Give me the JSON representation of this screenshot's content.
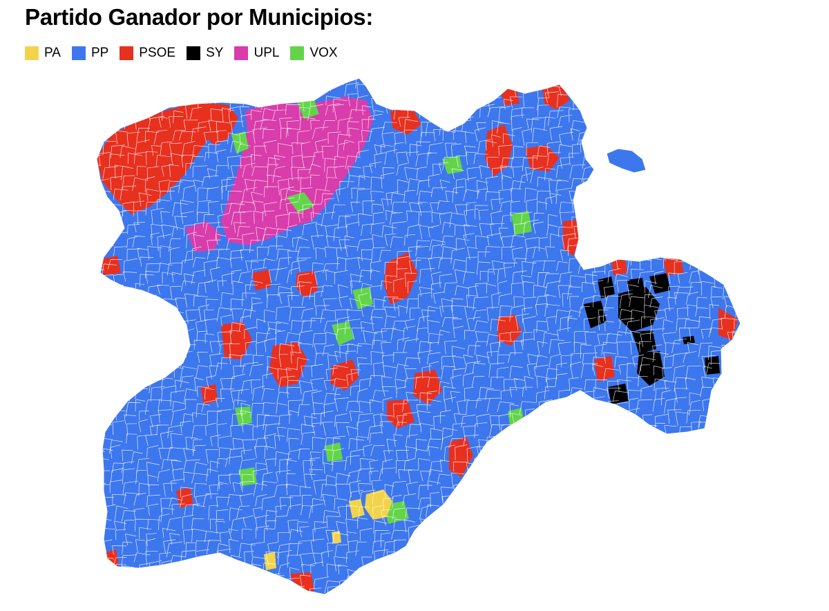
{
  "title": "Partido Ganador por Municipios:",
  "legend": [
    {
      "label": "PA",
      "color": "#f3d34a"
    },
    {
      "label": "PP",
      "color": "#3d77ee"
    },
    {
      "label": "PSOE",
      "color": "#e8301f"
    },
    {
      "label": "SY",
      "color": "#000000"
    },
    {
      "label": "UPL",
      "color": "#d83dab"
    },
    {
      "label": "VOX",
      "color": "#63d44a"
    }
  ],
  "map": {
    "base_color": "#3d77ee",
    "border_color": "#ffffff"
  }
}
